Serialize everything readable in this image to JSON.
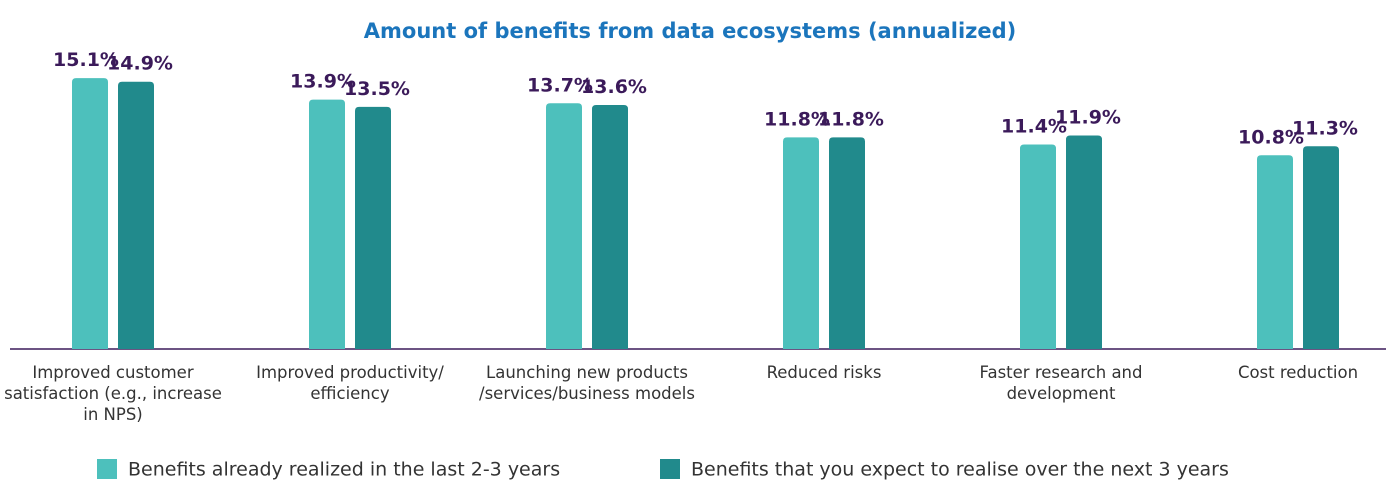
{
  "chart_data": {
    "type": "bar",
    "title": "Amount of benefits from data ecosystems (annualized)",
    "categories": [
      "Improved customer satisfaction (e.g., increase in NPS)",
      "Improved productivity/ efficiency",
      "Launching new products /services/business models",
      "Reduced risks",
      "Faster research and development",
      "Cost reduction"
    ],
    "series": [
      {
        "name": "Benefits already realized in the last 2-3 years",
        "color": "#4dc0bc",
        "values": [
          15.1,
          13.9,
          13.7,
          11.8,
          11.4,
          10.8
        ],
        "value_labels": [
          "15.1%",
          "13.9%",
          "13.7%",
          "11.8%",
          "11.4%",
          "10.8%"
        ]
      },
      {
        "name": "Benefits that you expect to realise over the next 3 years",
        "color": "#218a8c",
        "values": [
          14.9,
          13.5,
          13.6,
          11.8,
          11.9,
          11.3
        ],
        "value_labels": [
          "14.9%",
          "13.5%",
          "13.6%",
          "11.8%",
          "11.9%",
          "11.3%"
        ]
      }
    ],
    "ylim": [
      0,
      16
    ]
  }
}
